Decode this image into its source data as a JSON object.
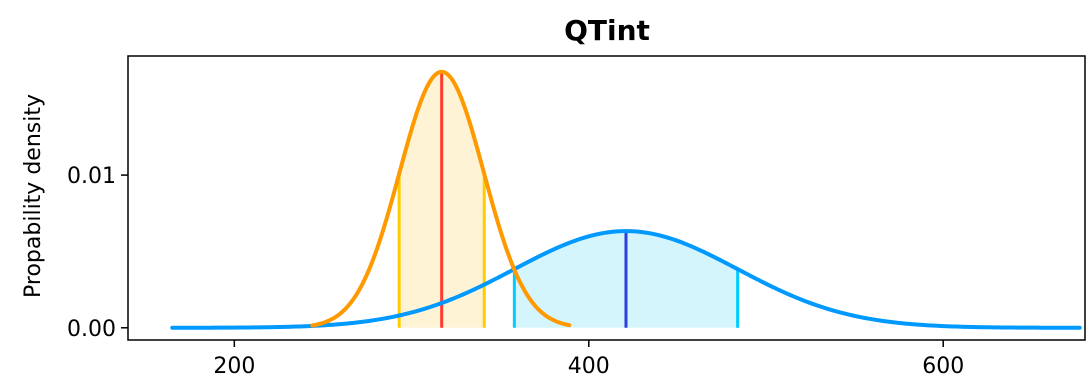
{
  "chart_data": {
    "type": "line",
    "title": "QTint",
    "xlabel": "",
    "ylabel": "Propability density",
    "xlim": [
      140,
      680
    ],
    "ylim": [
      -0.0008,
      0.0178
    ],
    "xticks": [
      200,
      400,
      600
    ],
    "yticks": [
      {
        "value": 0.0,
        "label": "0.00"
      },
      {
        "value": 0.01,
        "label": "0.01"
      }
    ],
    "grid": false,
    "legend": "none",
    "series": [
      {
        "mean": 317,
        "sd": 23.8,
        "x_range": [
          244,
          389
        ],
        "interval": [
          293,
          341
        ],
        "curve_color": "#ff9900",
        "fill_color": "#fff3d6",
        "interval_line_color": "#ffcc00",
        "mean_line_color": "#ff3b2f"
      },
      {
        "mean": 421,
        "sd": 63,
        "x_range": [
          165,
          677
        ],
        "interval": [
          358,
          484
        ],
        "curve_color": "#0099ff",
        "fill_color": "#d3f5fb",
        "interval_line_color": "#00ccff",
        "mean_line_color": "#2e3fe0"
      }
    ]
  }
}
